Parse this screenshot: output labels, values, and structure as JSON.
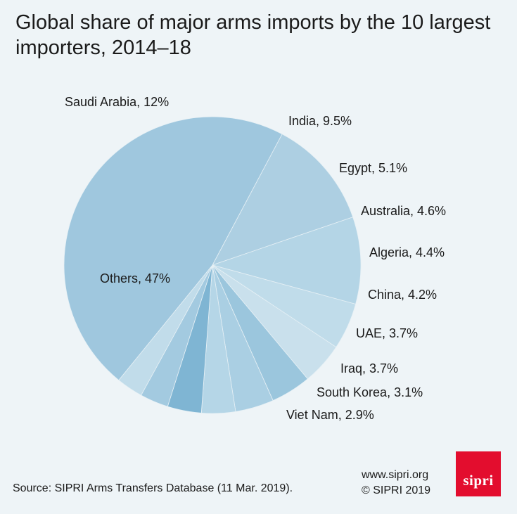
{
  "chart_data": {
    "type": "pie",
    "title": "Global share of major arms imports by the 10 largest importers, 2014–18",
    "slices": [
      {
        "label": "Saudi Arabia, 12%",
        "value": 12,
        "color": "#adcfe2"
      },
      {
        "label": "India, 9.5%",
        "value": 9.5,
        "color": "#b4d5e6"
      },
      {
        "label": "Egypt, 5.1%",
        "value": 5.1,
        "color": "#c0dcea"
      },
      {
        "label": "Australia, 4.6%",
        "value": 4.6,
        "color": "#c9e0ec"
      },
      {
        "label": "Algeria, 4.4%",
        "value": 4.4,
        "color": "#9bc6dd"
      },
      {
        "label": "China, 4.2%",
        "value": 4.2,
        "color": "#aacfe3"
      },
      {
        "label": "UAE, 3.7%",
        "value": 3.7,
        "color": "#b5d6e7"
      },
      {
        "label": "Iraq, 3.7%",
        "value": 3.7,
        "color": "#7fb5d3"
      },
      {
        "label": "South Korea, 3.1%",
        "value": 3.1,
        "color": "#a3cae0"
      },
      {
        "label": "Viet Nam, 2.9%",
        "value": 2.9,
        "color": "#c1dcea"
      },
      {
        "label": "Others, 47%",
        "value": 47,
        "color": "#9fc7de"
      }
    ]
  },
  "footer": {
    "source": "Source: SIPRI Arms Transfers Database (11 Mar. 2019).",
    "website": "www.sipri.org",
    "copyright": "© SIPRI 2019",
    "logo_text": "sipri",
    "logo_color": "#e30d2e"
  }
}
